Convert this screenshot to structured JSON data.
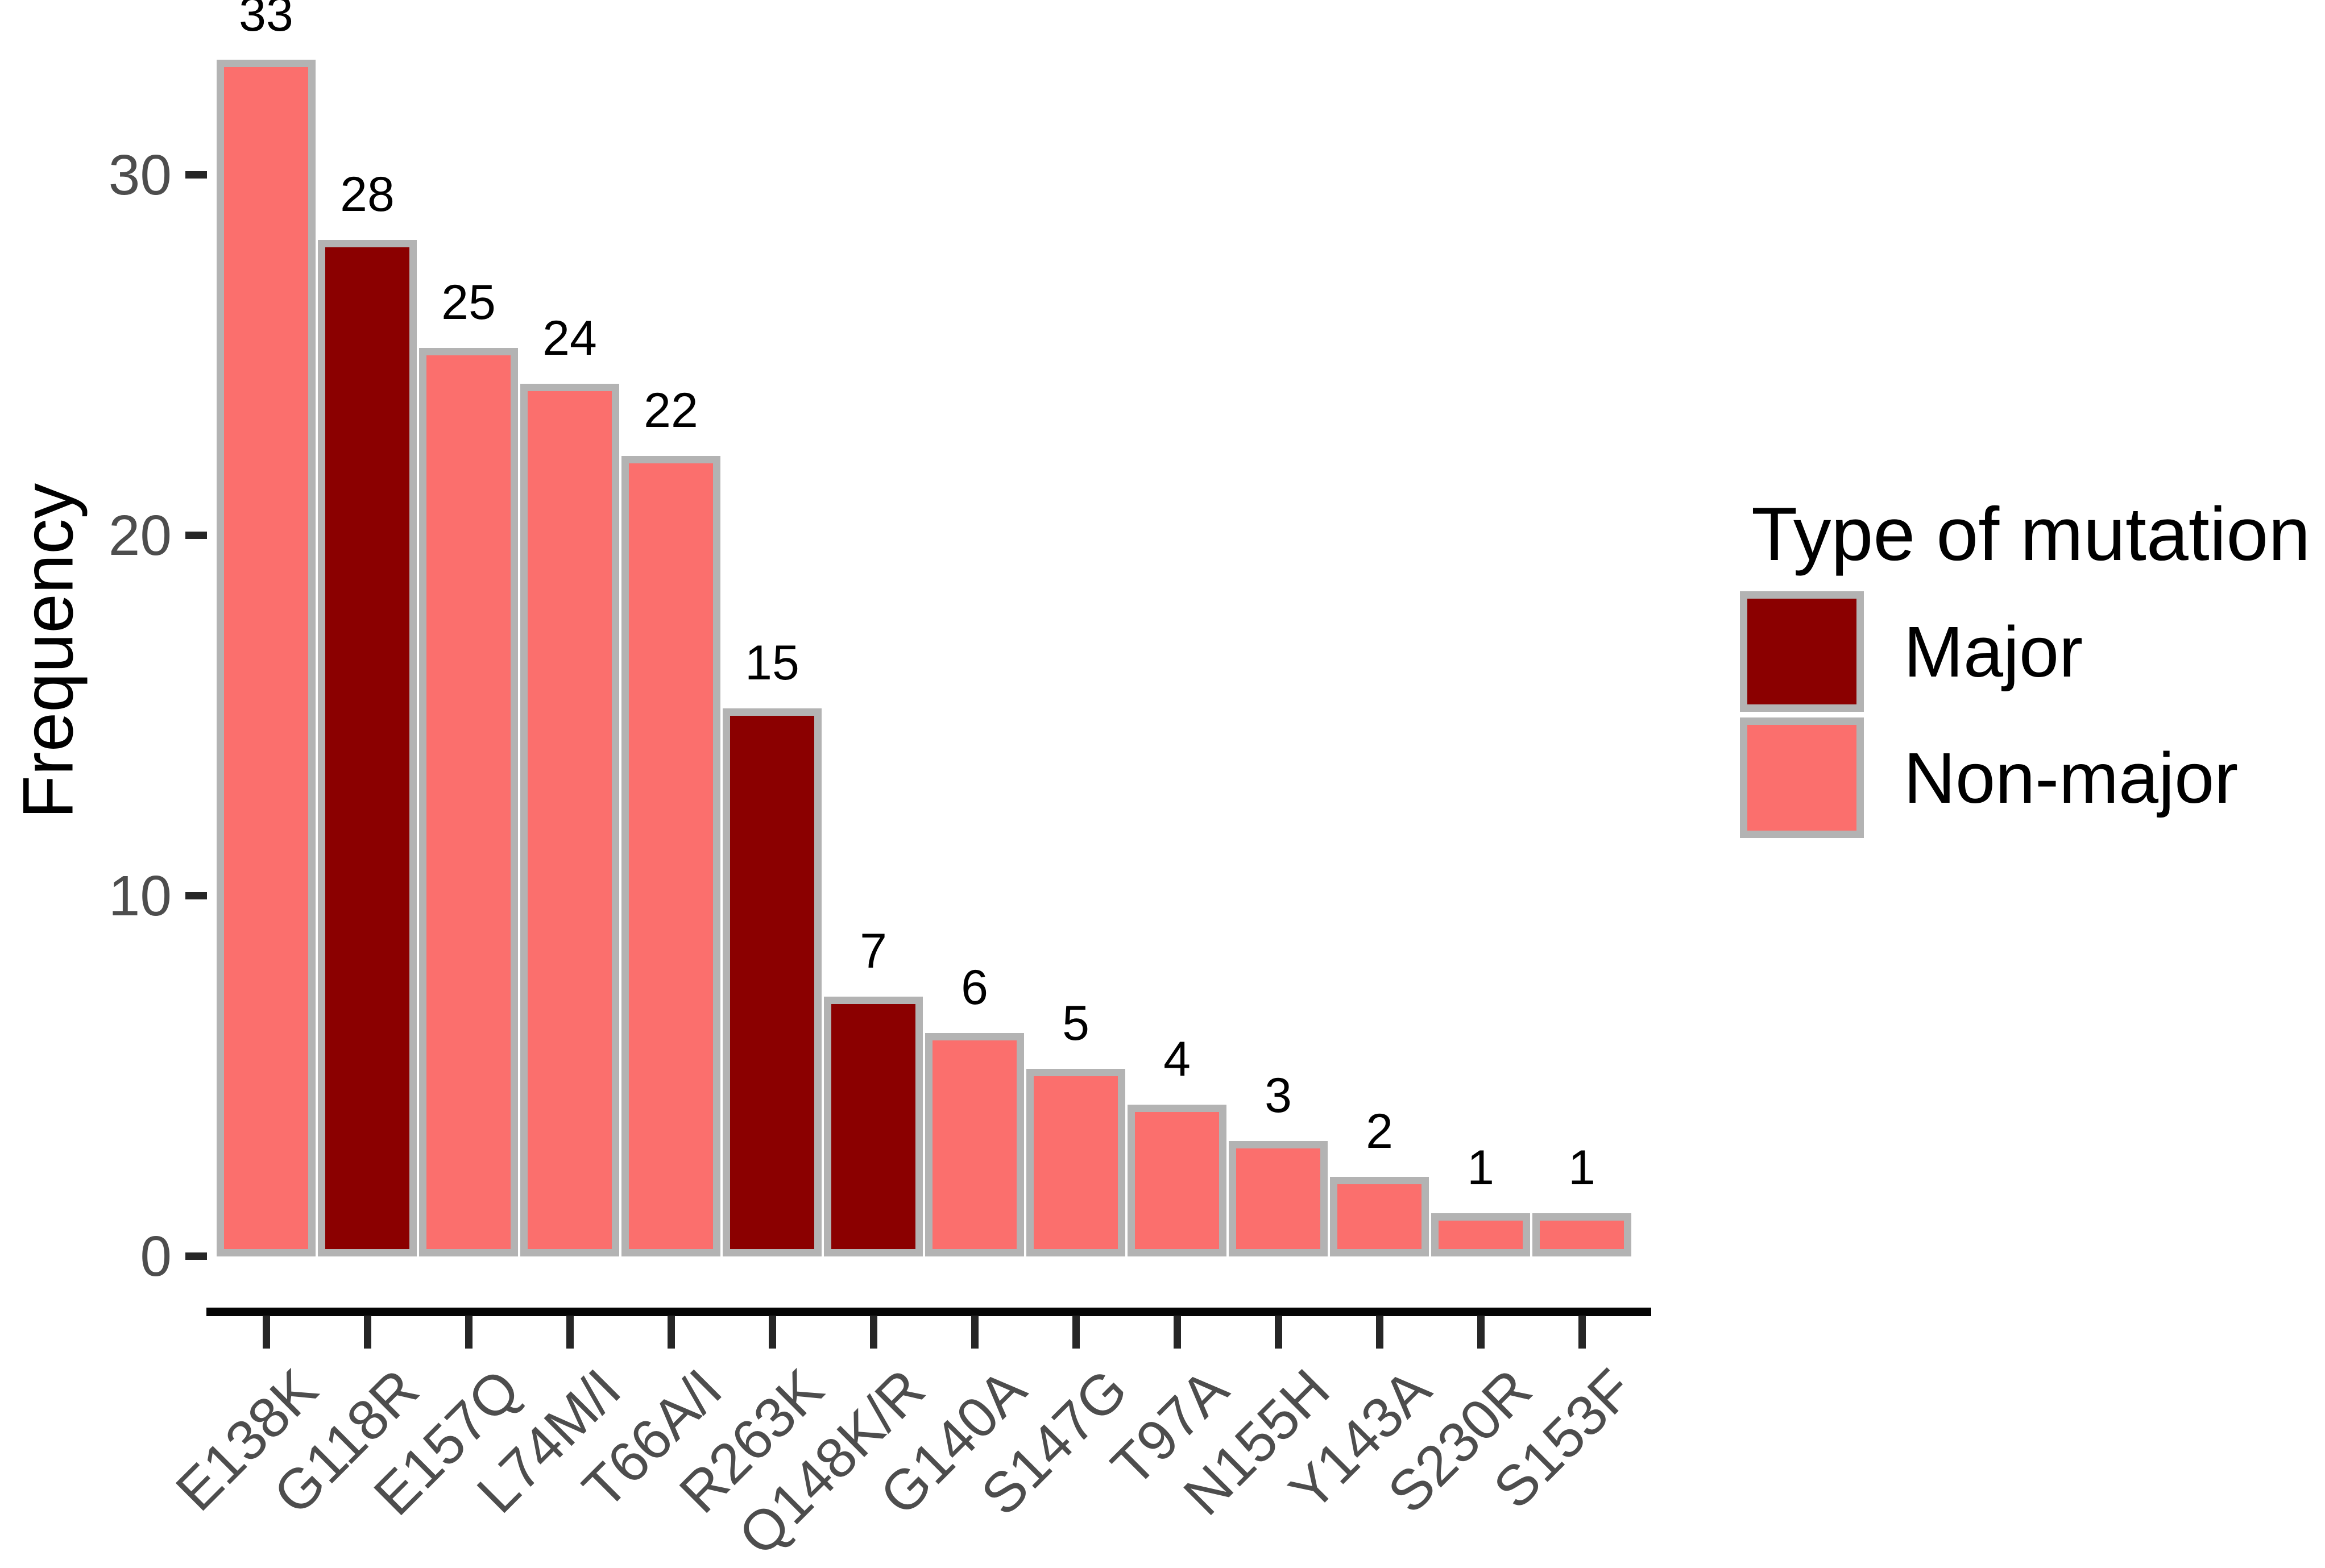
{
  "chart_data": {
    "type": "bar",
    "title": "",
    "xlabel": "",
    "ylabel": "Frequency",
    "categories": [
      "E138K",
      "G118R",
      "E157Q",
      "L74M/I",
      "T66A/I",
      "R263K",
      "Q148K/R",
      "G140A",
      "S147G",
      "T97A",
      "N155H",
      "Y143A",
      "S230R",
      "S153F"
    ],
    "values": [
      33,
      28,
      25,
      24,
      22,
      15,
      7,
      6,
      5,
      4,
      3,
      2,
      1,
      1
    ],
    "types": [
      "Non-major",
      "Major",
      "Non-major",
      "Non-major",
      "Non-major",
      "Major",
      "Major",
      "Non-major",
      "Non-major",
      "Non-major",
      "Non-major",
      "Non-major",
      "Non-major",
      "Non-major"
    ],
    "bar_value_labels": [
      "33",
      "28",
      "25",
      "24",
      "22",
      "15",
      "7",
      "6",
      "5",
      "4",
      "3",
      "2",
      "1",
      "1"
    ],
    "yticks": [
      0,
      10,
      20,
      30
    ],
    "ylim": [
      0,
      34
    ],
    "grid": false,
    "colors": {
      "Major": "#8b0000",
      "Non-major": "#fb6f6d"
    },
    "bar_border_color": "#b3b3b3",
    "axis_line_color": "#050505",
    "tick_color": "#262626",
    "tick_label_color": "#4d4d4d",
    "background_color": "#ffffff",
    "legend": {
      "position": "right",
      "title": "Type of mutation",
      "entries": [
        {
          "label": "Major",
          "color": "#8b0000"
        },
        {
          "label": "Non-major",
          "color": "#fb6f6d"
        }
      ]
    }
  }
}
